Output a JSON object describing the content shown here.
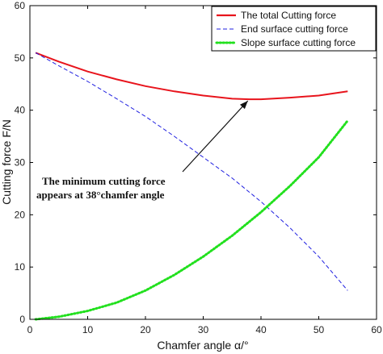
{
  "chart_data": {
    "type": "line",
    "xlabel": "Chamfer angle α/°",
    "ylabel": "Cutting force F/N",
    "xlim": [
      0,
      60
    ],
    "ylim": [
      0,
      60
    ],
    "xticks": [
      "0",
      "10",
      "20",
      "30",
      "40",
      "50",
      "60"
    ],
    "yticks": [
      "0",
      "10",
      "20",
      "30",
      "40",
      "50",
      "60"
    ],
    "grid": false,
    "legend_position": "top-right",
    "series": [
      {
        "name": "The total Cutting force",
        "style": "solid",
        "color": "#e8141c",
        "x": [
          1,
          5,
          10,
          15,
          20,
          25,
          30,
          35,
          38,
          40,
          45,
          50,
          55
        ],
        "y": [
          51,
          49.3,
          47.4,
          45.9,
          44.6,
          43.6,
          42.8,
          42.2,
          42.1,
          42.1,
          42.4,
          42.8,
          43.6
        ]
      },
      {
        "name": "End surface cutting force",
        "style": "dashed",
        "color": "#1f1fe0",
        "x": [
          1,
          5,
          10,
          15,
          20,
          25,
          30,
          35,
          40,
          45,
          50,
          55
        ],
        "y": [
          51,
          48.5,
          45.5,
          42.2,
          38.8,
          35,
          31,
          27,
          22.5,
          17.5,
          12,
          5.5
        ]
      },
      {
        "name": "Slope surface cutting force",
        "style": "dotted",
        "color": "#22e01e",
        "x": [
          1,
          5,
          10,
          15,
          20,
          25,
          30,
          35,
          40,
          45,
          50,
          55
        ],
        "y": [
          0,
          0.5,
          1.6,
          3.2,
          5.5,
          8.5,
          12,
          16,
          20.5,
          25.5,
          31,
          38
        ]
      }
    ],
    "annotation": {
      "lines": [
        "The minimum cutting force",
        "appears at 38°chamfer angle"
      ],
      "points_to": {
        "x": 38,
        "y": 42.1
      }
    }
  }
}
